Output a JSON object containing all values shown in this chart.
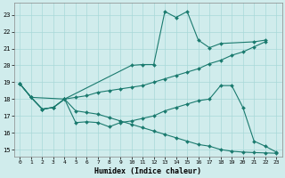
{
  "xlabel": "Humidex (Indice chaleur)",
  "bg_color": "#d0ecec",
  "grid_color": "#a8d8d8",
  "line_color": "#1a7a6e",
  "xlim": [
    -0.5,
    23.5
  ],
  "ylim": [
    14.6,
    23.7
  ],
  "yticks": [
    15,
    16,
    17,
    18,
    19,
    20,
    21,
    22,
    23
  ],
  "xticks": [
    0,
    1,
    2,
    3,
    4,
    5,
    6,
    7,
    8,
    9,
    10,
    11,
    12,
    13,
    14,
    15,
    16,
    17,
    18,
    19,
    20,
    21,
    22,
    23
  ],
  "series": [
    {
      "x": [
        0,
        1,
        4,
        10,
        11,
        12,
        13,
        14,
        15,
        16,
        17,
        18,
        21,
        22
      ],
      "y": [
        18.9,
        18.1,
        18.0,
        20.0,
        20.05,
        20.05,
        23.2,
        22.85,
        23.2,
        21.5,
        21.05,
        21.3,
        21.4,
        21.5
      ]
    },
    {
      "x": [
        0,
        1,
        2,
        3,
        4,
        5,
        6,
        7,
        8,
        9,
        10,
        11,
        12,
        13,
        14,
        15,
        16,
        17,
        18,
        19,
        20,
        21,
        22
      ],
      "y": [
        18.9,
        18.1,
        17.4,
        17.5,
        18.0,
        18.1,
        18.2,
        18.4,
        18.5,
        18.6,
        18.7,
        18.8,
        19.0,
        19.2,
        19.4,
        19.6,
        19.8,
        20.1,
        20.3,
        20.6,
        20.8,
        21.1,
        21.4
      ]
    },
    {
      "x": [
        0,
        1,
        2,
        3,
        4,
        5,
        6,
        7,
        8,
        9,
        10,
        11,
        12,
        13,
        14,
        15,
        16,
        17,
        18,
        19,
        20,
        21,
        22,
        23
      ],
      "y": [
        18.9,
        18.1,
        17.4,
        17.5,
        18.0,
        16.6,
        16.65,
        16.6,
        16.35,
        16.6,
        16.7,
        16.85,
        17.0,
        17.3,
        17.5,
        17.7,
        17.9,
        18.0,
        18.8,
        18.8,
        17.5,
        15.5,
        15.2,
        14.85
      ]
    },
    {
      "x": [
        0,
        1,
        2,
        3,
        4,
        5,
        6,
        7,
        8,
        9,
        10,
        11,
        12,
        13,
        14,
        15,
        16,
        17,
        18,
        19,
        20,
        21,
        22,
        23
      ],
      "y": [
        18.9,
        18.1,
        17.4,
        17.5,
        18.0,
        17.3,
        17.2,
        17.1,
        16.9,
        16.7,
        16.5,
        16.3,
        16.1,
        15.9,
        15.7,
        15.5,
        15.3,
        15.2,
        15.0,
        14.9,
        14.85,
        14.82,
        14.8,
        14.78
      ]
    }
  ]
}
